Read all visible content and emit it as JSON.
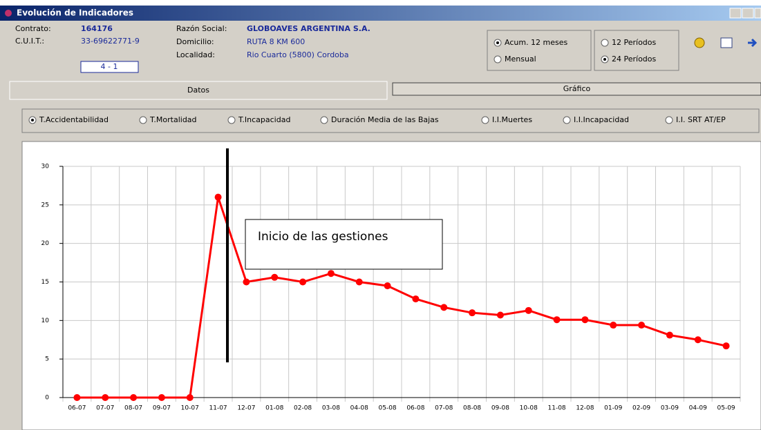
{
  "window": {
    "title": "Evolución de Indicadores"
  },
  "info_left": [
    {
      "label": "Contrato:",
      "value": "164176"
    },
    {
      "label": "C.U.I.T.:",
      "value": "33-69622771-9"
    }
  ],
  "code_box": "4 - 1",
  "info_right": [
    {
      "label": "Razón Social:",
      "value": "GLOBOAVES ARGENTINA S.A."
    },
    {
      "label": "Domicilio:",
      "value": "RUTA 8 KM 600"
    },
    {
      "label": "Localidad:",
      "value": "Rio Cuarto (5800) Cordoba"
    }
  ],
  "mode_options": [
    {
      "label": "Acum. 12 meses",
      "checked": true
    },
    {
      "label": "Mensual",
      "checked": false
    }
  ],
  "period_options": [
    {
      "label": "12 Períodos",
      "checked": false
    },
    {
      "label": "24 Períodos",
      "checked": true
    }
  ],
  "tabs": [
    {
      "label": "Datos",
      "active": true
    },
    {
      "label": "Gráfico",
      "active": false
    }
  ],
  "indicator_options": [
    {
      "label": "T.Accidentabilidad",
      "checked": true
    },
    {
      "label": "T.Mortalidad",
      "checked": false
    },
    {
      "label": "T.Incapacidad",
      "checked": false
    },
    {
      "label": "Duración Media de las Bajas",
      "checked": false
    },
    {
      "label": "I.I.Muertes",
      "checked": false
    },
    {
      "label": "I.I.Incapacidad",
      "checked": false
    },
    {
      "label": "I.I. SRT AT/EP",
      "checked": false
    }
  ],
  "chart_data": {
    "type": "line",
    "categories": [
      "06-07",
      "07-07",
      "08-07",
      "09-07",
      "10-07",
      "11-07",
      "12-07",
      "01-08",
      "02-08",
      "03-08",
      "04-08",
      "05-08",
      "06-08",
      "07-08",
      "08-08",
      "09-08",
      "10-08",
      "11-08",
      "12-08",
      "01-09",
      "02-09",
      "03-09",
      "04-09",
      "05-09"
    ],
    "series": [
      {
        "color": "#ff0000",
        "values": [
          0,
          0,
          0,
          0,
          0,
          26.0,
          15.0,
          15.6,
          15.0,
          16.1,
          15.0,
          14.5,
          12.8,
          11.7,
          11.0,
          10.7,
          11.3,
          10.1,
          10.1,
          9.4,
          9.4,
          8.1,
          7.5,
          6.7
        ]
      }
    ],
    "ylim": [
      0,
      30
    ],
    "yticks": [
      0,
      5,
      10,
      15,
      20,
      25,
      30
    ],
    "grid": true,
    "annotation": "Inicio de las gestiones"
  }
}
